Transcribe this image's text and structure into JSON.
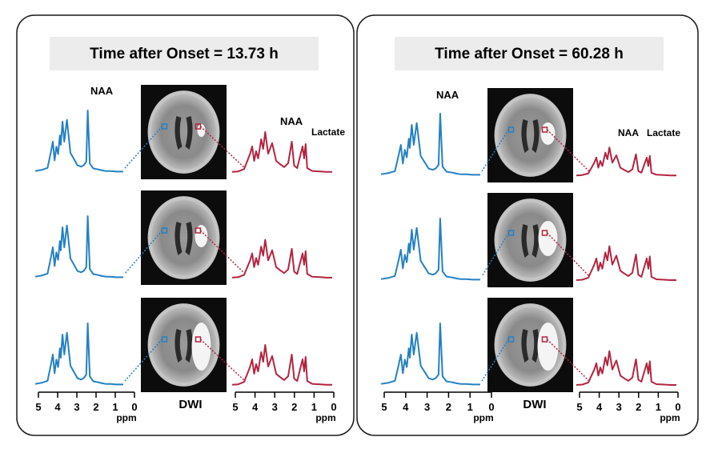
{
  "panels": [
    {
      "title": "Time after Onset = 13.73 h",
      "normal_peak_label": "NAA",
      "lesion_peak_labels": [
        "NAA",
        "Lactate"
      ],
      "image_label": "DWI",
      "rows": [
        "upper",
        "middle",
        "lower"
      ]
    },
    {
      "title": "Time after Onset = 60.28 h",
      "normal_peak_label": "NAA",
      "lesion_peak_labels": [
        "NAA",
        "Lactate"
      ],
      "image_label": "DWI",
      "rows": [
        "upper",
        "middle",
        "lower"
      ]
    }
  ],
  "axis": {
    "ticks": [
      "5",
      "4",
      "3",
      "2",
      "1",
      "0"
    ],
    "unit": "ppm",
    "range": [
      5,
      0
    ]
  },
  "colors": {
    "normal_spectrum": "#2480c4",
    "lesion_spectrum": "#b3243f",
    "panel_border": "#1a1a1a",
    "title_bg": "#ececec"
  },
  "chart_data": {
    "type": "line",
    "xlabel": "ppm",
    "xlim": [
      5,
      0
    ],
    "series": [
      {
        "name": "normal-tissue-spectrum",
        "x": [
          5.0,
          4.6,
          4.3,
          4.1,
          4.0,
          3.9,
          3.8,
          3.7,
          3.6,
          3.55,
          3.45,
          3.35,
          3.2,
          3.0,
          2.8,
          2.6,
          2.4,
          2.25,
          2.1,
          2.02,
          1.9,
          1.7,
          1.5,
          1.33,
          1.2,
          1.0,
          0.7,
          0.4,
          0.0
        ],
        "values": [
          0.03,
          0.05,
          0.08,
          0.35,
          0.5,
          0.2,
          0.42,
          0.3,
          0.6,
          0.45,
          0.82,
          0.5,
          0.85,
          0.32,
          0.22,
          0.12,
          0.1,
          0.12,
          0.18,
          1.0,
          0.15,
          0.07,
          0.06,
          0.05,
          0.04,
          0.03,
          0.03,
          0.02,
          0.02
        ]
      },
      {
        "name": "lesion-tissue-spectrum",
        "x": [
          5.0,
          4.7,
          4.4,
          4.1,
          4.0,
          3.9,
          3.8,
          3.7,
          3.55,
          3.45,
          3.35,
          3.2,
          3.0,
          2.8,
          2.6,
          2.4,
          2.2,
          2.02,
          1.9,
          1.75,
          1.6,
          1.48,
          1.4,
          1.33,
          1.25,
          1.0,
          0.6,
          0.3,
          0.0
        ],
        "values": [
          0.02,
          0.03,
          0.08,
          0.4,
          0.55,
          0.25,
          0.45,
          0.3,
          0.7,
          0.5,
          0.85,
          0.4,
          0.62,
          0.25,
          0.18,
          0.12,
          0.2,
          0.65,
          0.15,
          0.1,
          0.35,
          0.55,
          0.3,
          0.6,
          0.1,
          0.04,
          0.03,
          0.02,
          0.02
        ]
      }
    ]
  }
}
